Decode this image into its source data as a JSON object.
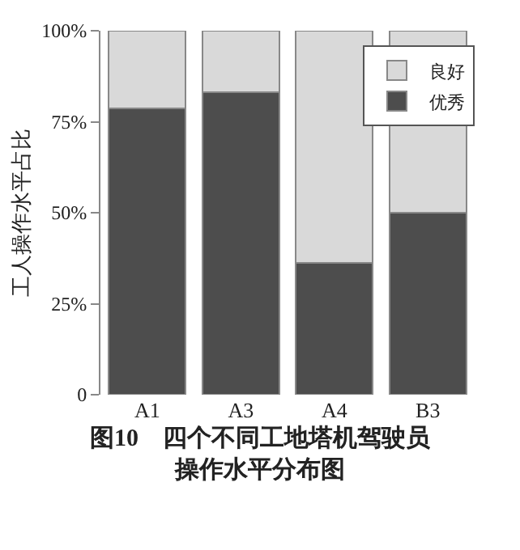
{
  "chart_data": {
    "type": "bar",
    "stacked": true,
    "title": "图10　四个不同工地塔机驾驶员操作水平分布图",
    "ylabel": "工人操作水平占比",
    "categories": [
      "A1",
      "A3",
      "A4",
      "B3"
    ],
    "series": [
      {
        "name": "优秀",
        "color": "#4d4d4d",
        "values": [
          78.6,
          83.1,
          36.3,
          50
        ]
      },
      {
        "name": "良好",
        "color": "#d9d9d9",
        "values": [
          21.4,
          16.9,
          63.7,
          50
        ]
      }
    ],
    "ylim": [
      0,
      100
    ],
    "yticks": [
      {
        "value": 0,
        "label": "0"
      },
      {
        "value": 25,
        "label": "25%"
      },
      {
        "value": 50,
        "label": "50%"
      },
      {
        "value": 75,
        "label": "75%"
      },
      {
        "value": 100,
        "label": "100%"
      }
    ],
    "legend": "top right"
  }
}
